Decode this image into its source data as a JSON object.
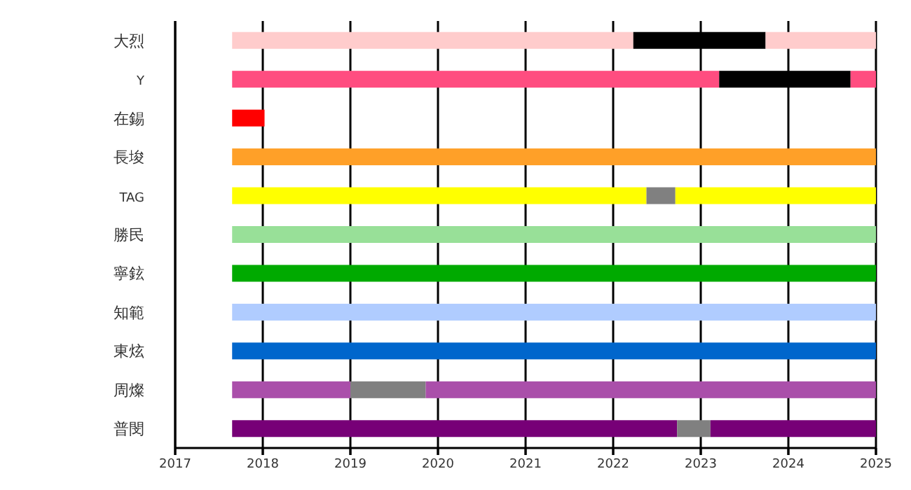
{
  "chart_data": {
    "type": "bar",
    "orientation": "horizontal",
    "categories": [
      "大烈",
      "Y",
      "在錫",
      "長埈",
      "TAG",
      "勝民",
      "寧鉉",
      "知範",
      "東炫",
      "周燦",
      "普閔"
    ],
    "series": [
      {
        "base": [
          2017.65,
          2017.65,
          2017.65,
          2017.65,
          2017.65,
          2017.65,
          2017.65,
          2017.65,
          2017.65,
          2017.65,
          2017.65
        ],
        "values": [
          4.58,
          5.56,
          0.37,
          7.35,
          4.73,
          7.35,
          7.35,
          7.35,
          7.35,
          1.35,
          5.08
        ],
        "colors": [
          "#ffcccc",
          "#ff4d80",
          "#ff0000",
          "#ffa028",
          "#ffff00",
          "#98e098",
          "#00aa00",
          "#b0ccff",
          "#0066cc",
          "#aa4faa",
          "#770077"
        ]
      },
      {
        "base": [
          2022.23,
          2023.21,
          null,
          null,
          2022.38,
          null,
          null,
          null,
          null,
          2019.0,
          2022.73
        ],
        "values": [
          1.51,
          1.5,
          null,
          null,
          0.33,
          null,
          null,
          null,
          null,
          0.86,
          0.38
        ],
        "colors": [
          "#000000",
          "#000000",
          null,
          null,
          "#808080",
          null,
          null,
          null,
          null,
          "#808080",
          "#808080"
        ]
      },
      {
        "base": [
          2023.74,
          2024.71,
          null,
          null,
          2022.71,
          null,
          null,
          null,
          null,
          2019.86,
          2023.11
        ],
        "values": [
          1.26,
          0.29,
          null,
          null,
          2.29,
          null,
          null,
          null,
          null,
          5.14,
          1.89
        ],
        "colors": [
          "#ffcccc",
          "#ff4d80",
          null,
          null,
          "#ffff00",
          null,
          null,
          null,
          null,
          "#aa4faa",
          "#770077"
        ]
      }
    ],
    "xlim": [
      2017,
      2025
    ],
    "xticks": [
      2017,
      2018,
      2019,
      2020,
      2021,
      2022,
      2023,
      2024,
      2025
    ],
    "grid": "x"
  }
}
